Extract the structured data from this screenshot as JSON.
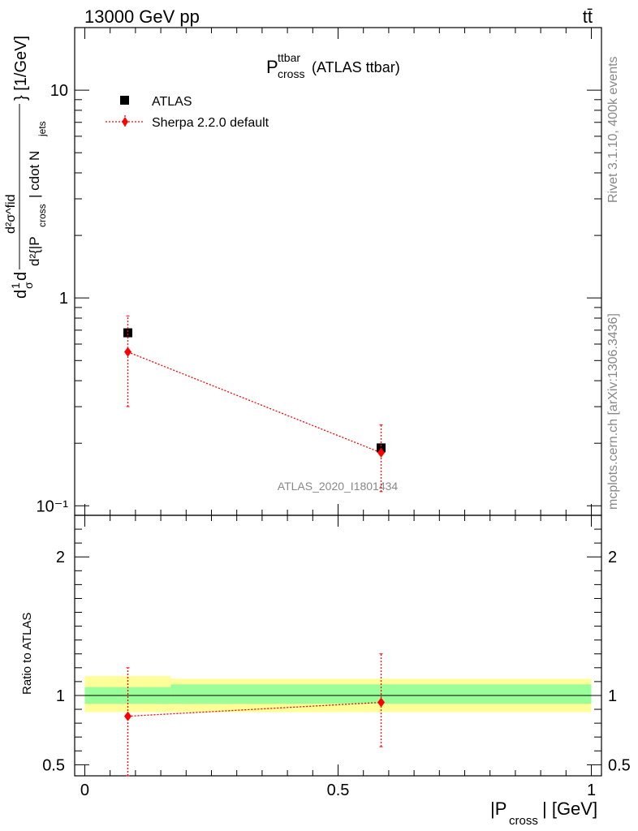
{
  "header": {
    "energy_label": "13000 GeV pp",
    "process_label": "tt̄"
  },
  "side_labels": {
    "rivet": "Rivet 3.1.10,  400k events",
    "mcplots": "mcplots.cern.ch [arXiv:1306.3436]"
  },
  "plot": {
    "title_main": "P",
    "title_sup": "ttbar",
    "title_sub": "cross",
    "title_suffix": "(ATLAS ttbar)",
    "analysis_id": "ATLAS_2020_I1801434",
    "ylabel_top": "d²σ^fid",
    "ylabel_mid": "d²{|P",
    "ylabel_cross": "cross",
    "ylabel_end": "| cdot N",
    "ylabel_jets": "jets",
    "ylabel_unit": "} [1/GeV]",
    "ylabel_prefix": "d",
    "ylabel_ratio": "Ratio to ATLAS",
    "xlabel_main": "|P",
    "xlabel_sub": "cross",
    "xlabel_unit": "| [GeV]"
  },
  "legend": [
    {
      "label": "ATLAS",
      "marker": "square",
      "color": "#000000"
    },
    {
      "label": "Sherpa 2.2.0 default",
      "marker": "diamond",
      "color": "#ff0000"
    }
  ],
  "chart_data": [
    {
      "type": "scatter",
      "panel": "main",
      "yscale": "log",
      "xlim": [
        -0.02,
        1.02
      ],
      "ylim": [
        0.09,
        20
      ],
      "x_ticks": [
        "0",
        "0.5",
        "1"
      ],
      "y_ticks": [
        "10⁻¹",
        "1",
        "10"
      ],
      "series": [
        {
          "name": "ATLAS",
          "x": [
            0.085,
            0.585
          ],
          "y": [
            0.68,
            0.19
          ],
          "color": "#000000"
        },
        {
          "name": "Sherpa 2.2.0 default",
          "x": [
            0.085,
            0.585
          ],
          "y": [
            0.55,
            0.18
          ],
          "yerr_low": [
            0.3,
            0.117
          ],
          "yerr_high": [
            0.82,
            0.245
          ],
          "color": "#ff0000"
        }
      ]
    },
    {
      "type": "scatter",
      "panel": "ratio",
      "xlim": [
        -0.02,
        1.02
      ],
      "ylim": [
        0.42,
        2.3
      ],
      "y_ticks": [
        "0.5",
        "1",
        "2"
      ],
      "bands": [
        {
          "x_from": 0.0,
          "x_to": 0.17,
          "inner": [
            0.94,
            1.06
          ],
          "outer": [
            0.88,
            1.14
          ],
          "inner_color": "#99ff99",
          "outer_color": "#ffff99"
        },
        {
          "x_from": 0.17,
          "x_to": 1.0,
          "inner": [
            0.94,
            1.08
          ],
          "outer": [
            0.88,
            1.12
          ],
          "inner_color": "#99ff99",
          "outer_color": "#ffff99"
        }
      ],
      "series": [
        {
          "name": "Sherpa 2.2.0 default",
          "x": [
            0.085,
            0.585
          ],
          "y": [
            0.85,
            0.95
          ],
          "yerr_low": [
            0.42,
            0.63
          ],
          "yerr_high": [
            1.2,
            1.3
          ],
          "color": "#ff0000"
        }
      ]
    }
  ]
}
